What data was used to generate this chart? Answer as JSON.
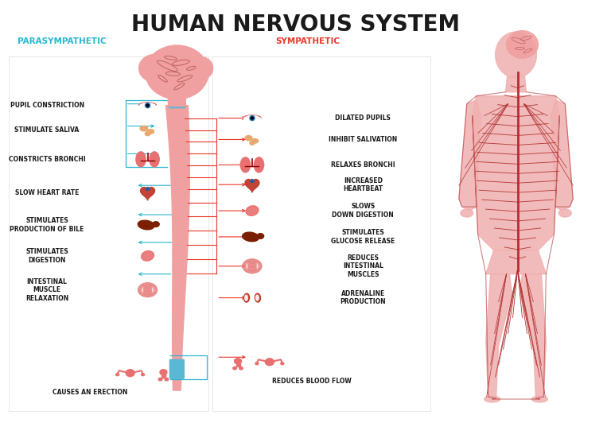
{
  "title": "HUMAN NERVOUS SYSTEM",
  "title_fontsize": 20,
  "title_color": "#1a1a1a",
  "title_fontweight": "bold",
  "bg_color": "#ffffff",
  "para_label": "PARASYMPATHETIC",
  "para_color": "#29b6d0",
  "symp_label": "SYMPATHETIC",
  "symp_color": "#e8372a",
  "organ_pink": "#e87070",
  "organ_red": "#c0392b",
  "organ_dark_red": "#8b2000",
  "organ_liver": "#7a2000",
  "organ_saliva": "#e8a870",
  "spine_pink": "#f0a0a0",
  "spine_blue": "#5bb8d4",
  "arrow_para": "#29b6d0",
  "arrow_symp": "#e8372a",
  "body_fill": "#f0b0b0",
  "body_nerve": "#b03030",
  "label_color": "#1a1a1a",
  "label_fs": 5.5
}
